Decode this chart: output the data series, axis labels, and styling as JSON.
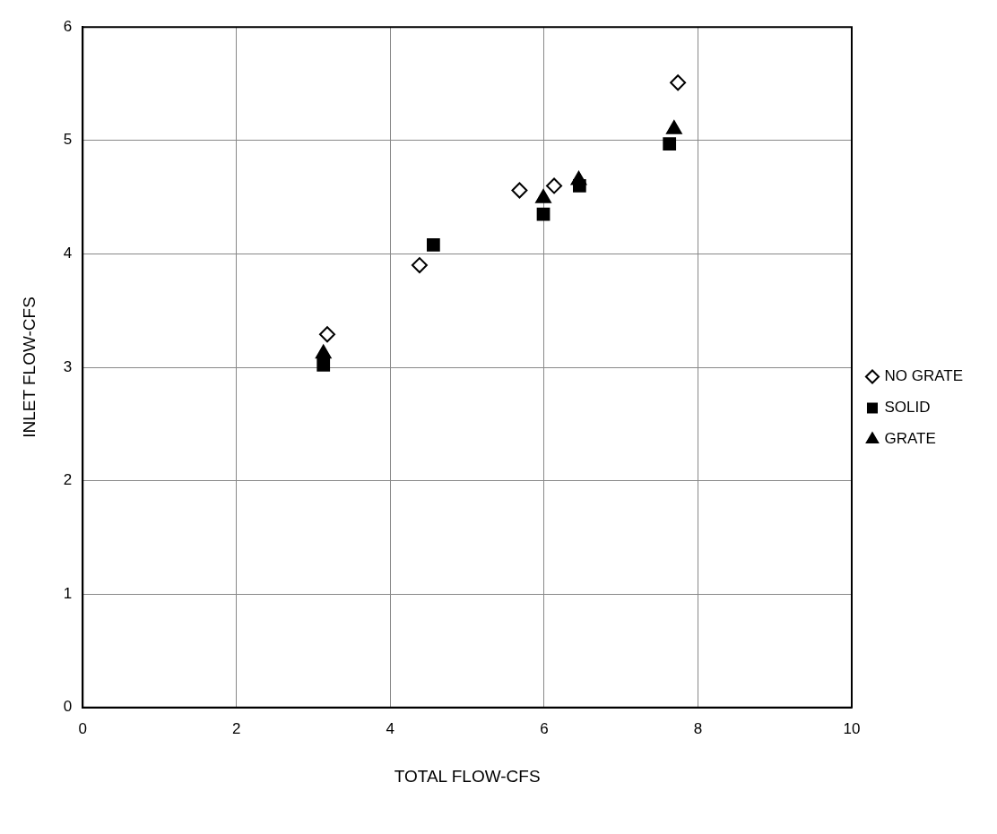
{
  "chart_data": {
    "type": "scatter",
    "xlabel": "TOTAL FLOW-CFS",
    "ylabel": "INLET FLOW-CFS",
    "xlim": [
      0,
      10
    ],
    "xticks": [
      0,
      2,
      4,
      6,
      8,
      10
    ],
    "ylim": [
      0,
      6
    ],
    "yticks": [
      0,
      1,
      2,
      3,
      4,
      5,
      6
    ],
    "grid": true,
    "legend": "right",
    "series": [
      {
        "name": "NO GRATE",
        "color": "#000000",
        "marker": "diamond",
        "x": [
          3.18,
          4.38,
          5.68,
          6.13,
          7.74
        ],
        "values": [
          3.29,
          3.9,
          4.56,
          4.6,
          5.51
        ]
      },
      {
        "name": "SOLID",
        "color": "#000000",
        "marker": "square",
        "x": [
          3.13,
          4.56,
          5.99,
          6.46,
          7.63
        ],
        "values": [
          3.02,
          4.08,
          4.35,
          4.6,
          4.97
        ]
      },
      {
        "name": "GRATE",
        "color": "#000000",
        "marker": "triangle",
        "x": [
          3.13,
          5.99,
          6.45,
          7.69
        ],
        "values": [
          3.12,
          4.49,
          4.65,
          5.1
        ]
      }
    ]
  }
}
